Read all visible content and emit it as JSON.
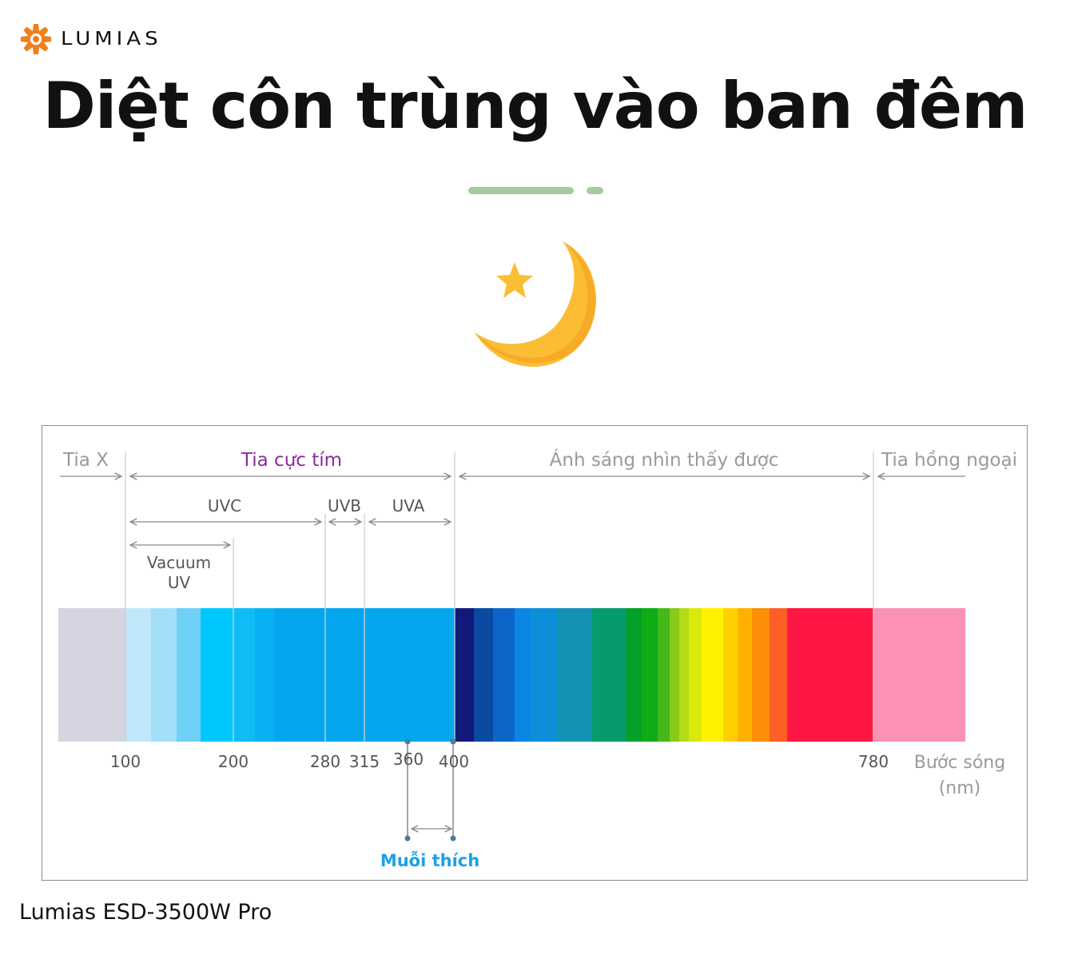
{
  "brand": {
    "logo_text": "LUMIAS",
    "logo_icon": "sun-burst-icon",
    "accent_color": "#f07f1d"
  },
  "headline": "Diệt côn trùng vào ban đêm",
  "divider_color": "#a4cc9e",
  "moon_icon": "crescent-moon-star-icon",
  "spectrum": {
    "regions": {
      "xray": "Tia X",
      "uv": "Tia cực tím",
      "visible": "Ánh sáng nhìn thấy được",
      "infrared": "Tia hồng ngoại"
    },
    "uv_bands": {
      "uvc": "UVC",
      "uvb": "UVB",
      "uva": "UVA",
      "vacuum_uv": [
        "Vacuum",
        "UV"
      ]
    },
    "ticks": [
      "100",
      "200",
      "280",
      "315",
      "360",
      "400",
      "780"
    ],
    "axis_label": [
      "Bước sóng",
      "(nm)"
    ],
    "mosquito_label": "Muỗi thích",
    "colors": {
      "uv_label": "#8b2ca0",
      "mosquito_label": "#1aa3e3",
      "xray_band": "#d5d5e1",
      "infrared_band": "#fb91b4"
    }
  },
  "footer": "Lumias ESD-3500W Pro"
}
